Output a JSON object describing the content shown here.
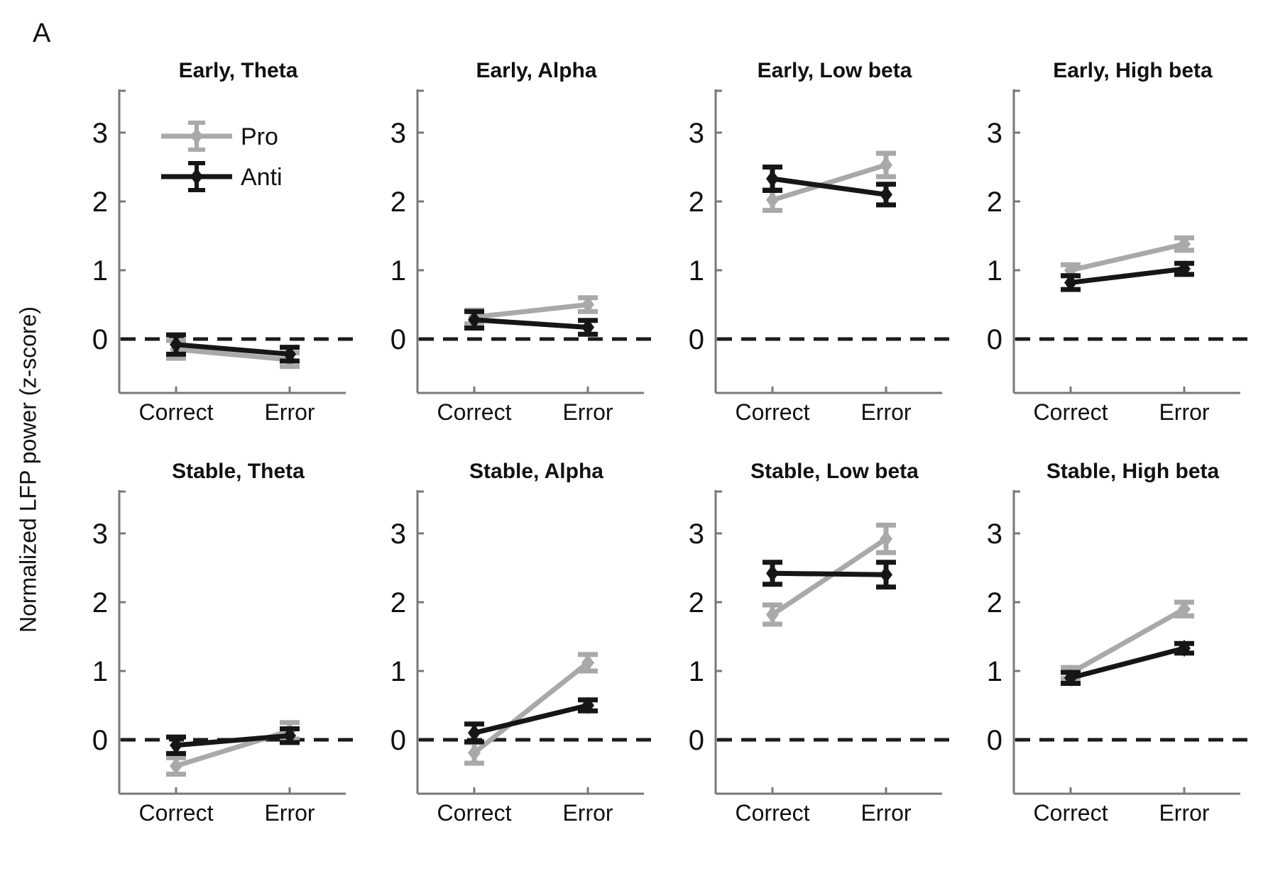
{
  "figure": {
    "panel_label": "A",
    "ylabel": "Normalized LFP power (z-score)",
    "background": "#ffffff"
  },
  "colors": {
    "pro": "#a9a9a9",
    "anti": "#161616",
    "axis": "#787878",
    "tick_text": "#111111",
    "zero_line": "#1b1b1b"
  },
  "legend": {
    "location": "top-left of first panel",
    "entries": [
      {
        "label": "Pro",
        "series": "pro"
      },
      {
        "label": "Anti",
        "series": "anti"
      }
    ]
  },
  "chart_data": [
    {
      "type": "line",
      "title": "Early, Theta",
      "categories": [
        "Correct",
        "Error"
      ],
      "yticks": [
        0,
        1,
        2,
        3
      ],
      "ylim": [
        -0.8,
        3.6
      ],
      "zero_line_dashed": true,
      "series": [
        {
          "name": "Pro",
          "color_key": "pro",
          "values": [
            -0.15,
            -0.3
          ],
          "errors": [
            0.13,
            0.1
          ]
        },
        {
          "name": "Anti",
          "color_key": "anti",
          "values": [
            -0.08,
            -0.22
          ],
          "errors": [
            0.14,
            0.1
          ]
        }
      ]
    },
    {
      "type": "line",
      "title": "Early, Alpha",
      "categories": [
        "Correct",
        "Error"
      ],
      "yticks": [
        0,
        1,
        2,
        3
      ],
      "ylim": [
        -0.8,
        3.6
      ],
      "zero_line_dashed": true,
      "series": [
        {
          "name": "Pro",
          "color_key": "pro",
          "values": [
            0.32,
            0.5
          ],
          "errors": [
            0.1,
            0.1
          ]
        },
        {
          "name": "Anti",
          "color_key": "anti",
          "values": [
            0.28,
            0.17
          ],
          "errors": [
            0.12,
            0.1
          ]
        }
      ]
    },
    {
      "type": "line",
      "title": "Early, Low beta",
      "categories": [
        "Correct",
        "Error"
      ],
      "yticks": [
        0,
        1,
        2,
        3
      ],
      "ylim": [
        -0.8,
        3.6
      ],
      "zero_line_dashed": true,
      "series": [
        {
          "name": "Pro",
          "color_key": "pro",
          "values": [
            2.02,
            2.53
          ],
          "errors": [
            0.15,
            0.17
          ]
        },
        {
          "name": "Anti",
          "color_key": "anti",
          "values": [
            2.33,
            2.1
          ],
          "errors": [
            0.17,
            0.15
          ]
        }
      ]
    },
    {
      "type": "line",
      "title": "Early, High beta",
      "categories": [
        "Correct",
        "Error"
      ],
      "yticks": [
        0,
        1,
        2,
        3
      ],
      "ylim": [
        -0.8,
        3.6
      ],
      "zero_line_dashed": true,
      "series": [
        {
          "name": "Pro",
          "color_key": "pro",
          "values": [
            1.0,
            1.38
          ],
          "errors": [
            0.08,
            0.09
          ]
        },
        {
          "name": "Anti",
          "color_key": "anti",
          "values": [
            0.82,
            1.02
          ],
          "errors": [
            0.1,
            0.08
          ]
        }
      ]
    },
    {
      "type": "line",
      "title": "Stable, Theta",
      "categories": [
        "Correct",
        "Error"
      ],
      "yticks": [
        0,
        1,
        2,
        3
      ],
      "ylim": [
        -0.8,
        3.6
      ],
      "zero_line_dashed": true,
      "series": [
        {
          "name": "Pro",
          "color_key": "pro",
          "values": [
            -0.38,
            0.13
          ],
          "errors": [
            0.12,
            0.12
          ]
        },
        {
          "name": "Anti",
          "color_key": "anti",
          "values": [
            -0.08,
            0.06
          ],
          "errors": [
            0.12,
            0.1
          ]
        }
      ]
    },
    {
      "type": "line",
      "title": "Stable, Alpha",
      "categories": [
        "Correct",
        "Error"
      ],
      "yticks": [
        0,
        1,
        2,
        3
      ],
      "ylim": [
        -0.8,
        3.6
      ],
      "zero_line_dashed": true,
      "series": [
        {
          "name": "Pro",
          "color_key": "pro",
          "values": [
            -0.19,
            1.12
          ],
          "errors": [
            0.15,
            0.12
          ]
        },
        {
          "name": "Anti",
          "color_key": "anti",
          "values": [
            0.1,
            0.5
          ],
          "errors": [
            0.13,
            0.08
          ]
        }
      ]
    },
    {
      "type": "line",
      "title": "Stable, Low beta",
      "categories": [
        "Correct",
        "Error"
      ],
      "yticks": [
        0,
        1,
        2,
        3
      ],
      "ylim": [
        -0.8,
        3.6
      ],
      "zero_line_dashed": true,
      "series": [
        {
          "name": "Pro",
          "color_key": "pro",
          "values": [
            1.82,
            2.92
          ],
          "errors": [
            0.14,
            0.2
          ]
        },
        {
          "name": "Anti",
          "color_key": "anti",
          "values": [
            2.42,
            2.4
          ],
          "errors": [
            0.16,
            0.18
          ]
        }
      ]
    },
    {
      "type": "line",
      "title": "Stable, High beta",
      "categories": [
        "Correct",
        "Error"
      ],
      "yticks": [
        0,
        1,
        2,
        3
      ],
      "ylim": [
        -0.8,
        3.6
      ],
      "zero_line_dashed": true,
      "series": [
        {
          "name": "Pro",
          "color_key": "pro",
          "values": [
            0.97,
            1.9
          ],
          "errors": [
            0.08,
            0.1
          ]
        },
        {
          "name": "Anti",
          "color_key": "anti",
          "values": [
            0.9,
            1.33
          ],
          "errors": [
            0.08,
            0.07
          ]
        }
      ]
    }
  ]
}
